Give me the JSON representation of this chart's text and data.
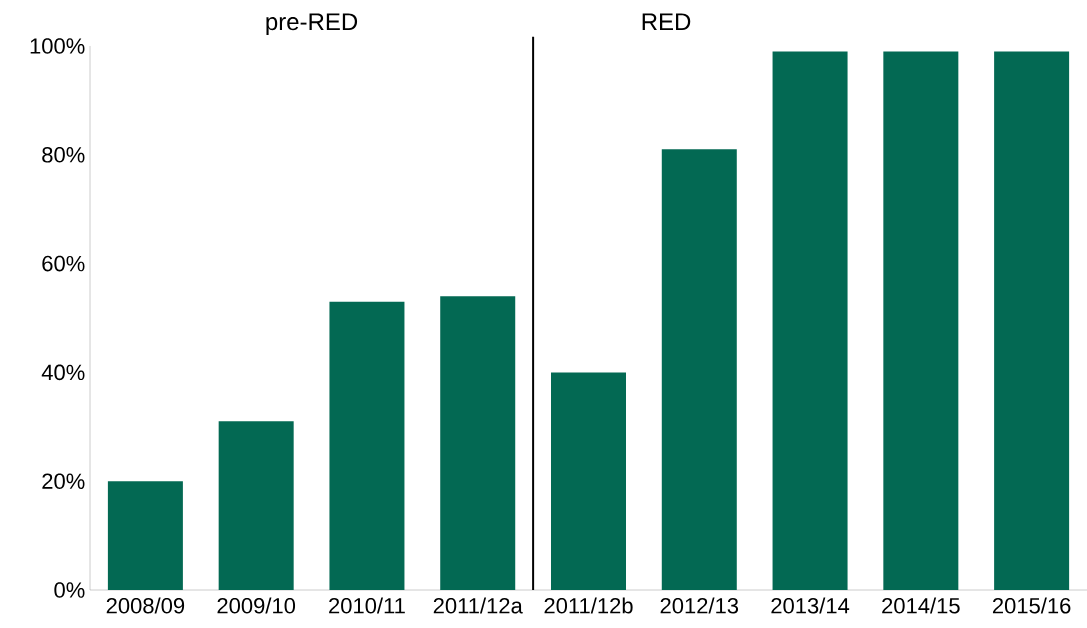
{
  "chart_data": {
    "type": "bar",
    "categories": [
      "2008/09",
      "2009/10",
      "2010/11",
      "2011/12a",
      "2011/12b",
      "2012/13",
      "2013/14",
      "2014/15",
      "2015/16"
    ],
    "values": [
      20,
      31,
      53,
      54,
      40,
      81,
      99,
      99,
      99
    ],
    "color": "#036953",
    "ylim": [
      0,
      100
    ],
    "yticks": [
      {
        "value": 0,
        "label": "0%"
      },
      {
        "value": 20,
        "label": "20%"
      },
      {
        "value": 40,
        "label": "40%"
      },
      {
        "value": 60,
        "label": "60%"
      },
      {
        "value": 80,
        "label": "80%"
      },
      {
        "value": 100,
        "label": "100%"
      }
    ],
    "annotations": [
      "pre-RED",
      "RED"
    ]
  }
}
